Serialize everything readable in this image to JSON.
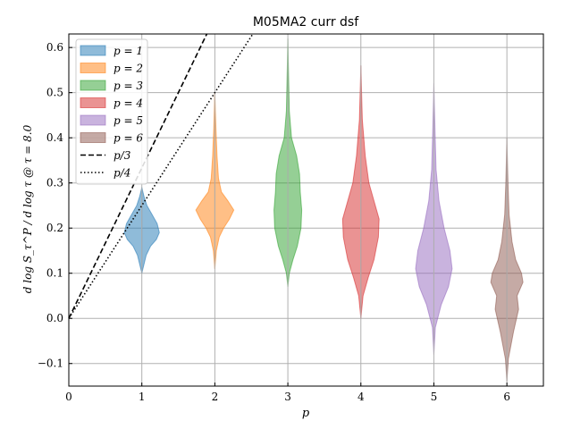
{
  "chart_data": {
    "type": "violin",
    "title": "M05MA2 curr dsf",
    "xlabel": "p",
    "ylabel": "d log S_τ^P / d log τ @ τ = 8.0",
    "xlim": [
      0,
      6.5
    ],
    "ylim": [
      -0.15,
      0.63
    ],
    "xticks": [
      0,
      1,
      2,
      3,
      4,
      5,
      6
    ],
    "yticks": [
      -0.1,
      0.0,
      0.1,
      0.2,
      0.3,
      0.4,
      0.5,
      0.6
    ],
    "xtick_labels": [
      "0",
      "1",
      "2",
      "3",
      "4",
      "5",
      "6"
    ],
    "ytick_labels": [
      "−0.1",
      "0.0",
      "0.1",
      "0.2",
      "0.3",
      "0.4",
      "0.5",
      "0.6"
    ],
    "grid": true,
    "legend_position": "top-left",
    "series": [
      {
        "name": "p = 1",
        "position": 1,
        "color": "#1f77b4",
        "min": 0.1,
        "max": 0.29,
        "profile": [
          [
            0.1,
            0.0
          ],
          [
            0.12,
            0.03
          ],
          [
            0.14,
            0.06
          ],
          [
            0.16,
            0.12
          ],
          [
            0.175,
            0.2
          ],
          [
            0.19,
            0.24
          ],
          [
            0.21,
            0.21
          ],
          [
            0.23,
            0.14
          ],
          [
            0.25,
            0.07
          ],
          [
            0.27,
            0.03
          ],
          [
            0.29,
            0.0
          ]
        ]
      },
      {
        "name": "p = 2",
        "position": 2,
        "color": "#ff7f0e",
        "min": 0.11,
        "max": 0.5,
        "profile": [
          [
            0.11,
            0.0
          ],
          [
            0.15,
            0.02
          ],
          [
            0.18,
            0.06
          ],
          [
            0.2,
            0.12
          ],
          [
            0.22,
            0.2
          ],
          [
            0.24,
            0.26
          ],
          [
            0.26,
            0.18
          ],
          [
            0.28,
            0.09
          ],
          [
            0.31,
            0.05
          ],
          [
            0.36,
            0.03
          ],
          [
            0.42,
            0.015
          ],
          [
            0.5,
            0.0
          ]
        ]
      },
      {
        "name": "p = 3",
        "position": 3,
        "color": "#2ca02c",
        "min": 0.07,
        "max": 0.62,
        "profile": [
          [
            0.07,
            0.0
          ],
          [
            0.1,
            0.02
          ],
          [
            0.13,
            0.07
          ],
          [
            0.16,
            0.13
          ],
          [
            0.2,
            0.18
          ],
          [
            0.24,
            0.19
          ],
          [
            0.28,
            0.17
          ],
          [
            0.32,
            0.16
          ],
          [
            0.36,
            0.12
          ],
          [
            0.4,
            0.05
          ],
          [
            0.46,
            0.02
          ],
          [
            0.54,
            0.01
          ],
          [
            0.62,
            0.0
          ]
        ]
      },
      {
        "name": "p = 4",
        "position": 4,
        "color": "#d62728",
        "min": 0.0,
        "max": 0.56,
        "profile": [
          [
            0.0,
            0.0
          ],
          [
            0.05,
            0.03
          ],
          [
            0.09,
            0.1
          ],
          [
            0.13,
            0.18
          ],
          [
            0.18,
            0.24
          ],
          [
            0.22,
            0.25
          ],
          [
            0.26,
            0.18
          ],
          [
            0.3,
            0.11
          ],
          [
            0.36,
            0.06
          ],
          [
            0.44,
            0.02
          ],
          [
            0.5,
            0.01
          ],
          [
            0.56,
            0.0
          ]
        ]
      },
      {
        "name": "p = 5",
        "position": 5,
        "color": "#9467bd",
        "min": -0.08,
        "max": 0.52,
        "profile": [
          [
            -0.08,
            0.0
          ],
          [
            -0.02,
            0.02
          ],
          [
            0.03,
            0.1
          ],
          [
            0.07,
            0.2
          ],
          [
            0.11,
            0.25
          ],
          [
            0.15,
            0.22
          ],
          [
            0.2,
            0.14
          ],
          [
            0.26,
            0.07
          ],
          [
            0.33,
            0.03
          ],
          [
            0.42,
            0.015
          ],
          [
            0.52,
            0.0
          ]
        ]
      },
      {
        "name": "p = 6",
        "position": 6,
        "color": "#8c564b",
        "min": -0.14,
        "max": 0.4,
        "profile": [
          [
            -0.14,
            0.0
          ],
          [
            -0.09,
            0.02
          ],
          [
            -0.03,
            0.09
          ],
          [
            0.02,
            0.16
          ],
          [
            0.05,
            0.14
          ],
          [
            0.08,
            0.22
          ],
          [
            0.1,
            0.2
          ],
          [
            0.13,
            0.12
          ],
          [
            0.17,
            0.07
          ],
          [
            0.23,
            0.03
          ],
          [
            0.3,
            0.015
          ],
          [
            0.4,
            0.0
          ]
        ]
      }
    ],
    "reference_lines": [
      {
        "name": "p/3",
        "style": "dashed",
        "slope": 0.3333333
      },
      {
        "name": "p/4",
        "style": "dotted",
        "slope": 0.25
      }
    ]
  }
}
